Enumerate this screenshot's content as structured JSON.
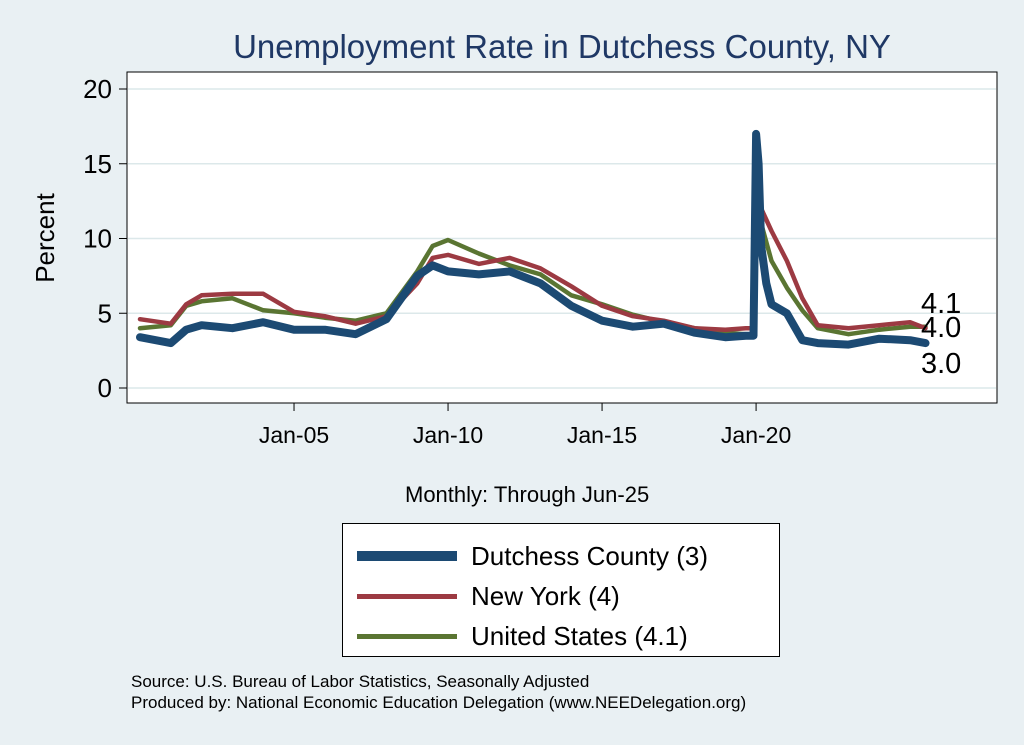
{
  "chart_data": {
    "type": "line",
    "title": "Unemployment Rate in Dutchess  County, NY",
    "xlabel": "Monthly: Through Jun-25",
    "ylabel": "Percent",
    "x_range": [
      "Jan-00",
      "Jun-25"
    ],
    "ylim": [
      0,
      21
    ],
    "yticks": [
      0,
      5,
      10,
      15,
      20
    ],
    "xticks": [
      {
        "label": "Jan-05",
        "month_index": 60
      },
      {
        "label": "Jan-10",
        "month_index": 120
      },
      {
        "label": "Jan-15",
        "month_index": 180
      },
      {
        "label": "Jan-20",
        "month_index": 240
      }
    ],
    "grid": true,
    "series": [
      {
        "name": "Dutchess  County (3)",
        "color": "#1c4a73",
        "end_label": "3.0",
        "points": [
          [
            0,
            3.4
          ],
          [
            12,
            3.0
          ],
          [
            18,
            3.9
          ],
          [
            24,
            4.2
          ],
          [
            36,
            4.0
          ],
          [
            48,
            4.4
          ],
          [
            60,
            3.9
          ],
          [
            72,
            3.9
          ],
          [
            84,
            3.6
          ],
          [
            96,
            4.6
          ],
          [
            108,
            7.5
          ],
          [
            114,
            8.2
          ],
          [
            120,
            7.8
          ],
          [
            132,
            7.6
          ],
          [
            144,
            7.8
          ],
          [
            156,
            7.0
          ],
          [
            168,
            5.5
          ],
          [
            180,
            4.5
          ],
          [
            192,
            4.1
          ],
          [
            204,
            4.3
          ],
          [
            216,
            3.7
          ],
          [
            228,
            3.4
          ],
          [
            236,
            3.5
          ],
          [
            239,
            3.5
          ],
          [
            240,
            17.0
          ],
          [
            241,
            15.0
          ],
          [
            242,
            9.5
          ],
          [
            244,
            7.0
          ],
          [
            246,
            5.6
          ],
          [
            252,
            5.0
          ],
          [
            258,
            3.2
          ],
          [
            264,
            3.0
          ],
          [
            276,
            2.9
          ],
          [
            288,
            3.3
          ],
          [
            300,
            3.2
          ],
          [
            306,
            3.0
          ]
        ]
      },
      {
        "name": "New York (4)",
        "color": "#9c3a42",
        "end_label": "4.0",
        "points": [
          [
            0,
            4.6
          ],
          [
            12,
            4.3
          ],
          [
            18,
            5.6
          ],
          [
            24,
            6.2
          ],
          [
            36,
            6.3
          ],
          [
            48,
            6.3
          ],
          [
            60,
            5.1
          ],
          [
            72,
            4.8
          ],
          [
            84,
            4.3
          ],
          [
            96,
            4.8
          ],
          [
            108,
            7.0
          ],
          [
            114,
            8.7
          ],
          [
            120,
            8.9
          ],
          [
            132,
            8.3
          ],
          [
            144,
            8.7
          ],
          [
            156,
            8.0
          ],
          [
            168,
            6.8
          ],
          [
            180,
            5.5
          ],
          [
            192,
            4.8
          ],
          [
            204,
            4.5
          ],
          [
            216,
            4.0
          ],
          [
            228,
            3.9
          ],
          [
            236,
            4.0
          ],
          [
            239,
            4.0
          ],
          [
            240,
            16.5
          ],
          [
            241,
            15.8
          ],
          [
            242,
            12.0
          ],
          [
            246,
            10.5
          ],
          [
            252,
            8.5
          ],
          [
            258,
            6.0
          ],
          [
            264,
            4.2
          ],
          [
            276,
            4.0
          ],
          [
            288,
            4.2
          ],
          [
            300,
            4.4
          ],
          [
            306,
            4.0
          ]
        ]
      },
      {
        "name": "United States (4.1)",
        "color": "#5a7532",
        "end_label": "4.1",
        "points": [
          [
            0,
            4.0
          ],
          [
            12,
            4.2
          ],
          [
            18,
            5.5
          ],
          [
            24,
            5.8
          ],
          [
            36,
            6.0
          ],
          [
            48,
            5.2
          ],
          [
            60,
            5.0
          ],
          [
            72,
            4.7
          ],
          [
            84,
            4.5
          ],
          [
            96,
            5.0
          ],
          [
            108,
            7.8
          ],
          [
            114,
            9.5
          ],
          [
            120,
            9.9
          ],
          [
            132,
            9.0
          ],
          [
            144,
            8.2
          ],
          [
            156,
            7.6
          ],
          [
            168,
            6.2
          ],
          [
            180,
            5.6
          ],
          [
            192,
            4.9
          ],
          [
            204,
            4.4
          ],
          [
            216,
            4.0
          ],
          [
            228,
            3.7
          ],
          [
            236,
            3.6
          ],
          [
            239,
            3.5
          ],
          [
            240,
            14.7
          ],
          [
            241,
            13.2
          ],
          [
            242,
            11.0
          ],
          [
            246,
            8.5
          ],
          [
            252,
            6.7
          ],
          [
            258,
            5.2
          ],
          [
            264,
            4.0
          ],
          [
            276,
            3.6
          ],
          [
            288,
            3.9
          ],
          [
            300,
            4.1
          ],
          [
            306,
            4.1
          ]
        ]
      }
    ]
  },
  "source_lines": [
    "Source: U.S. Bureau of Labor Statistics, Seasonally Adjusted",
    "Produced by: National Economic Education Delegation (www.NEEDelegation.org)"
  ]
}
